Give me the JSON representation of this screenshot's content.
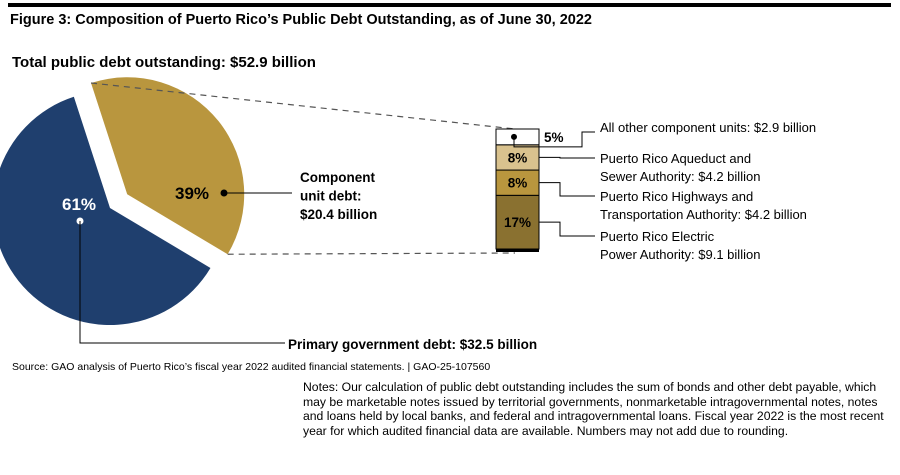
{
  "figure_title": "Figure 3: Composition of Puerto Rico’s Public Debt Outstanding, as of June 30, 2022",
  "total_label": "Total public debt outstanding: $52.9 billion",
  "source": "Source: GAO analysis of Puerto Rico’s fiscal year 2022 audited financial statements.  |  GAO-25-107560",
  "notes": "Notes: Our calculation of public debt outstanding includes the sum of bonds and other debt payable, which may be marketable notes issued by territorial governments, nonmarketable intragovernmental notes, notes and loans held by local banks, and federal and intragovernmental loans. Fiscal year 2022 is the most recent year for which audited financial data are available. Numbers may not add due to rounding.",
  "chart_data": [
    {
      "type": "pie",
      "slices": [
        {
          "label_lines": [
            "Primary government debt: $32.5 billion"
          ],
          "value": 32.5,
          "percent_label": "61%",
          "color": "#1f3f6e"
        },
        {
          "label_lines": [
            "Component",
            "unit debt:",
            "$20.4 billion"
          ],
          "value": 20.4,
          "percent_label": "39%",
          "color": "#b9963e"
        }
      ]
    },
    {
      "type": "bar",
      "stacked": true,
      "segments": [
        {
          "percent_label": "17%",
          "value": 17,
          "label_lines": [
            "Puerto Rico Electric",
            "Power Authority: $9.1 billion"
          ],
          "color": "#8a7130"
        },
        {
          "percent_label": "8%",
          "value": 8,
          "label_lines": [
            "Puerto Rico Highways and",
            "Transportation Authority: $4.2 billion"
          ],
          "color": "#b9963e"
        },
        {
          "percent_label": "8%",
          "value": 8,
          "label_lines": [
            "Puerto Rico Aqueduct and",
            "Sewer Authority: $4.2 billion"
          ],
          "color": "#d9c28e"
        },
        {
          "percent_label": "5%",
          "value": 5,
          "label_lines": [
            "All other component units: $2.9 billion"
          ],
          "color": "#ffffff"
        }
      ]
    }
  ]
}
